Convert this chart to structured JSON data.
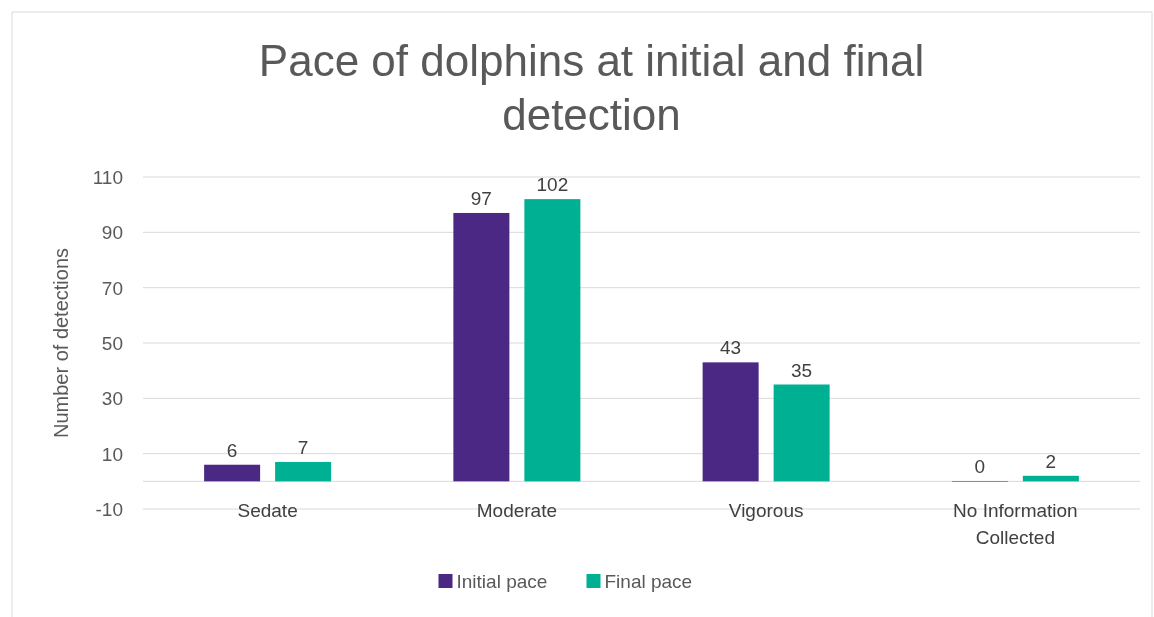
{
  "chart_data": {
    "type": "bar",
    "title": "Pace of dolphins at initial and final detection",
    "ylabel": "Number of detections",
    "categories": [
      "Sedate",
      "Moderate",
      "Vigorous",
      "No Information Collected"
    ],
    "series": [
      {
        "name": "Initial pace",
        "color": "#4b2883",
        "values": [
          6,
          97,
          43,
          0
        ]
      },
      {
        "name": "Final pace",
        "color": "#00b092",
        "values": [
          7,
          102,
          35,
          2
        ]
      }
    ],
    "ylim": [
      -10,
      110
    ],
    "yticks": [
      -10,
      10,
      30,
      50,
      70,
      90,
      110
    ],
    "grid": "y",
    "legend": "bottom",
    "data_labels": true
  }
}
